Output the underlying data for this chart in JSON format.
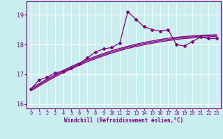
{
  "title": "",
  "xlabel": "Windchill (Refroidissement éolien,°C)",
  "background_color": "#c8eef0",
  "line_color": "#800080",
  "grid_color": "#ffffff",
  "x_data": [
    0,
    1,
    2,
    3,
    4,
    5,
    6,
    7,
    8,
    9,
    10,
    11,
    12,
    13,
    14,
    15,
    16,
    17,
    18,
    19,
    20,
    21,
    22,
    23
  ],
  "y_main": [
    16.5,
    16.8,
    16.9,
    17.05,
    17.1,
    17.2,
    17.35,
    17.55,
    17.75,
    17.85,
    17.9,
    18.05,
    19.1,
    18.85,
    18.6,
    18.5,
    18.45,
    18.5,
    18.0,
    17.95,
    18.1,
    18.25,
    18.2,
    18.2
  ],
  "y_reg1": [
    16.52,
    16.68,
    16.84,
    16.99,
    17.13,
    17.26,
    17.38,
    17.5,
    17.6,
    17.7,
    17.79,
    17.87,
    17.94,
    18.01,
    18.07,
    18.12,
    18.17,
    18.21,
    18.24,
    18.27,
    18.29,
    18.31,
    18.32,
    18.33
  ],
  "y_reg2": [
    16.48,
    16.64,
    16.8,
    16.95,
    17.09,
    17.22,
    17.34,
    17.46,
    17.56,
    17.66,
    17.75,
    17.83,
    17.91,
    17.97,
    18.03,
    18.08,
    18.13,
    18.17,
    18.21,
    18.24,
    18.26,
    18.28,
    18.3,
    18.31
  ],
  "y_reg3": [
    16.44,
    16.6,
    16.76,
    16.91,
    17.05,
    17.18,
    17.3,
    17.42,
    17.52,
    17.62,
    17.71,
    17.79,
    17.87,
    17.93,
    17.99,
    18.04,
    18.09,
    18.13,
    18.17,
    18.2,
    18.22,
    18.24,
    18.26,
    18.27
  ],
  "ylim": [
    15.85,
    19.45
  ],
  "xlim": [
    -0.5,
    23.5
  ],
  "yticks": [
    16,
    17,
    18,
    19
  ],
  "xticks": [
    0,
    1,
    2,
    3,
    4,
    5,
    6,
    7,
    8,
    9,
    10,
    11,
    12,
    13,
    14,
    15,
    16,
    17,
    18,
    19,
    20,
    21,
    22,
    23
  ]
}
